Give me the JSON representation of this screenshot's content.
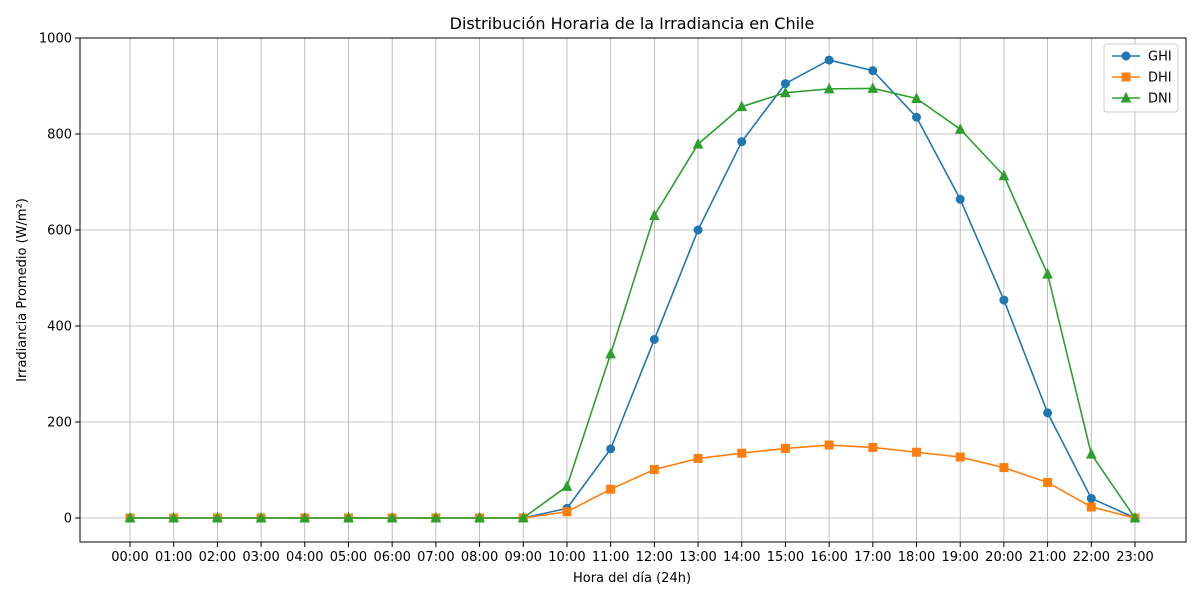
{
  "chart_data": {
    "type": "line",
    "title": "Distribución Horaria de la Irradiancia en Chile",
    "xlabel": "Hora del día (24h)",
    "ylabel": "Irradiancia Promedio (W/m²)",
    "categories": [
      "00:00",
      "01:00",
      "02:00",
      "03:00",
      "04:00",
      "05:00",
      "06:00",
      "07:00",
      "08:00",
      "09:00",
      "10:00",
      "11:00",
      "12:00",
      "13:00",
      "14:00",
      "15:00",
      "16:00",
      "17:00",
      "18:00",
      "19:00",
      "20:00",
      "21:00",
      "22:00",
      "23:00"
    ],
    "ylim": [
      -50,
      1000
    ],
    "yticks": [
      0,
      200,
      400,
      600,
      800,
      1000
    ],
    "grid": true,
    "legend_position": "top-right",
    "series": [
      {
        "name": "GHI",
        "color": "#1f77b4",
        "marker": "circle",
        "values": [
          0,
          0,
          0,
          0,
          0,
          0,
          0,
          0,
          0,
          0,
          20,
          144,
          372,
          600,
          784,
          905,
          954,
          932,
          835,
          664,
          454,
          219,
          41,
          0
        ]
      },
      {
        "name": "DHI",
        "color": "#ff7f0e",
        "marker": "square",
        "values": [
          0,
          0,
          0,
          0,
          0,
          0,
          0,
          0,
          0,
          0,
          13,
          60,
          101,
          124,
          135,
          145,
          152,
          147,
          137,
          127,
          105,
          74,
          23,
          0
        ]
      },
      {
        "name": "DNI",
        "color": "#2ca02c",
        "marker": "triangle",
        "values": [
          0,
          0,
          0,
          0,
          0,
          0,
          0,
          0,
          0,
          0,
          66,
          342,
          630,
          779,
          857,
          886,
          894,
          895,
          874,
          810,
          713,
          508,
          133,
          0
        ]
      }
    ]
  }
}
